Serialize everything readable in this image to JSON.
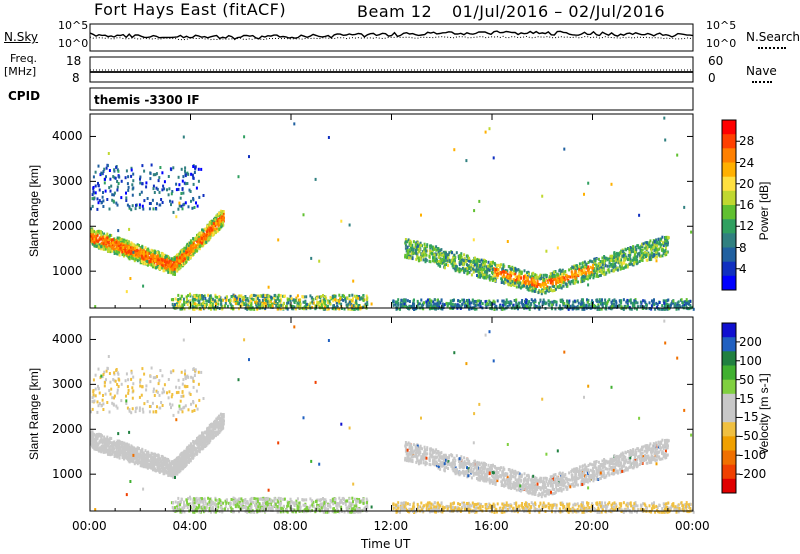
{
  "header": {
    "station": "Fort Hays East (fitACF)",
    "beam": "Beam 12",
    "dates": "01/Jul/2016 – 02/Jul/2016"
  },
  "left_labels": {
    "nsky": "N.Sky",
    "freq": "Freq.",
    "freq_unit": "[MHz]",
    "cpid": "CPID"
  },
  "right_labels": {
    "nsearch": "N.Search",
    "nave": "Nave"
  },
  "noise_axis": {
    "left_top": "10^5",
    "left_bottom": "10^0",
    "right_top": "10^5",
    "right_bottom": "10^0"
  },
  "freq_axis": {
    "top": "18",
    "bottom": "8"
  },
  "nave_axis": {
    "top": "60",
    "bottom": "0"
  },
  "cpid_text": "themis -3300 IF",
  "power_colorbar": {
    "label": "Power [dB]",
    "ticks": [
      "28",
      "24",
      "20",
      "16",
      "12",
      "8",
      "4"
    ],
    "colors": [
      "#ff0000",
      "#ff4000",
      "#ff8000",
      "#ffb000",
      "#ffe040",
      "#c0d830",
      "#60c030",
      "#30a060",
      "#308080",
      "#2060a0",
      "#1030c0",
      "#0000ff"
    ]
  },
  "velocity_colorbar": {
    "label": "Velocity [m s-1]",
    "ticks": [
      "200",
      "100",
      "50",
      "15",
      "-15",
      "-50",
      "-100",
      "-200"
    ],
    "colors": [
      "#1010d0",
      "#2060c0",
      "#208040",
      "#40b030",
      "#80d040",
      "#c8c8c8",
      "#c8c8c8",
      "#f0c040",
      "#f0a000",
      "#f07000",
      "#f04000",
      "#e00000"
    ]
  },
  "x_axis": {
    "label": "Time UT",
    "ticks": [
      "00:00",
      "04:00",
      "08:00",
      "12:00",
      "16:00",
      "20:00",
      "00:00"
    ]
  },
  "y_axis": {
    "label": "Slant Range [km]",
    "ticks": [
      "1000",
      "2000",
      "3000",
      "4000"
    ]
  },
  "chart_data": [
    {
      "type": "heatmap",
      "title": "Power",
      "xlabel": "Time UT",
      "ylabel": "Slant Range [km]",
      "xlim": [
        0,
        24
      ],
      "ylim": [
        180,
        4500
      ],
      "colorbar_label": "Power [dB]",
      "colorbar_range": [
        0,
        30
      ],
      "echo_regions": [
        {
          "t0": 0.0,
          "t1": 5.3,
          "r0": 1050,
          "r1": 2100,
          "db": 22
        },
        {
          "t0": 0.0,
          "t1": 4.5,
          "r0": 2400,
          "r1": 3400,
          "db": 5
        },
        {
          "t0": 3.2,
          "t1": 11.0,
          "r0": 180,
          "r1": 500,
          "db": 14
        },
        {
          "t0": 12.5,
          "t1": 23.0,
          "r0": 500,
          "r1": 1800,
          "db": 14
        },
        {
          "t0": 12.0,
          "t1": 24.0,
          "r0": 180,
          "r1": 400,
          "db": 8
        }
      ]
    },
    {
      "type": "heatmap",
      "title": "Velocity",
      "xlabel": "Time UT",
      "ylabel": "Slant Range [km]",
      "xlim": [
        0,
        24
      ],
      "ylim": [
        180,
        4500
      ],
      "colorbar_label": "Velocity [m s-1]",
      "colorbar_range": [
        -200,
        200
      ],
      "echo_regions": [
        {
          "t0": 0.0,
          "t1": 5.3,
          "r0": 1050,
          "r1": 2100,
          "vel": 0
        },
        {
          "t0": 0.0,
          "t1": 4.5,
          "r0": 2400,
          "r1": 3400,
          "vel": -30
        },
        {
          "t0": 3.2,
          "t1": 11.0,
          "r0": 180,
          "r1": 500,
          "vel": 30
        },
        {
          "t0": 12.5,
          "t1": 23.0,
          "r0": 500,
          "r1": 1800,
          "vel": 0
        },
        {
          "t0": 12.0,
          "t1": 24.0,
          "r0": 180,
          "r1": 400,
          "vel": -40
        }
      ]
    }
  ]
}
